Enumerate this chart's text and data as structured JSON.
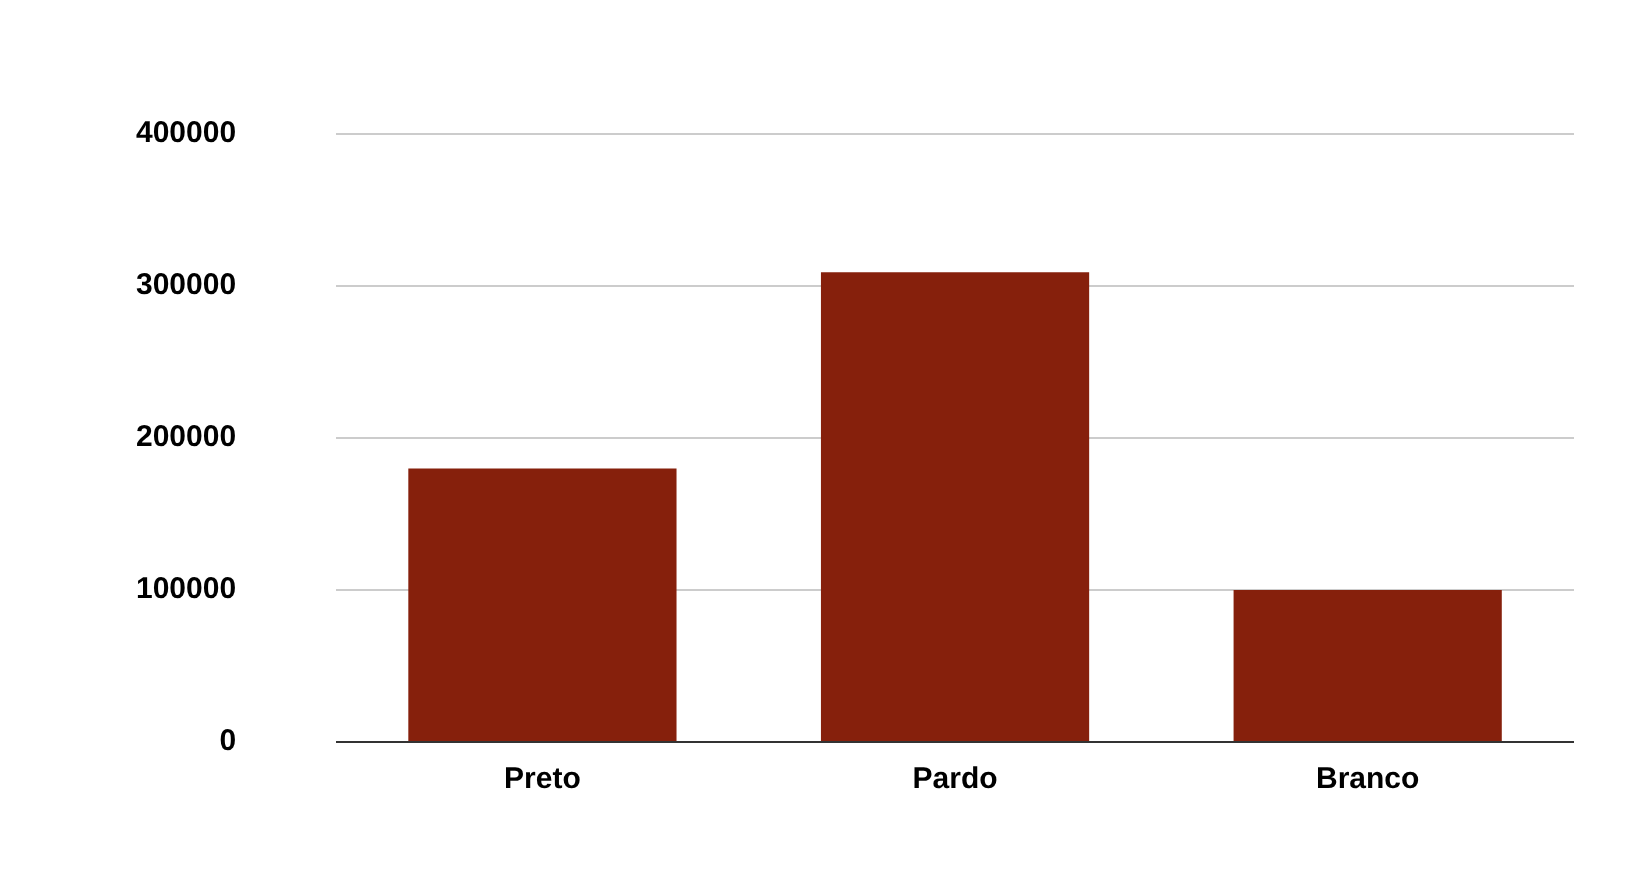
{
  "chart_data": {
    "type": "bar",
    "categories": [
      "Preto",
      "Pardo",
      "Branco"
    ],
    "values": [
      180000,
      309000,
      100000
    ],
    "color": "#86200c",
    "ylim": [
      0,
      400000
    ],
    "yticks": [
      0,
      100000,
      200000,
      300000,
      400000
    ],
    "grid": "y",
    "legend": false
  }
}
